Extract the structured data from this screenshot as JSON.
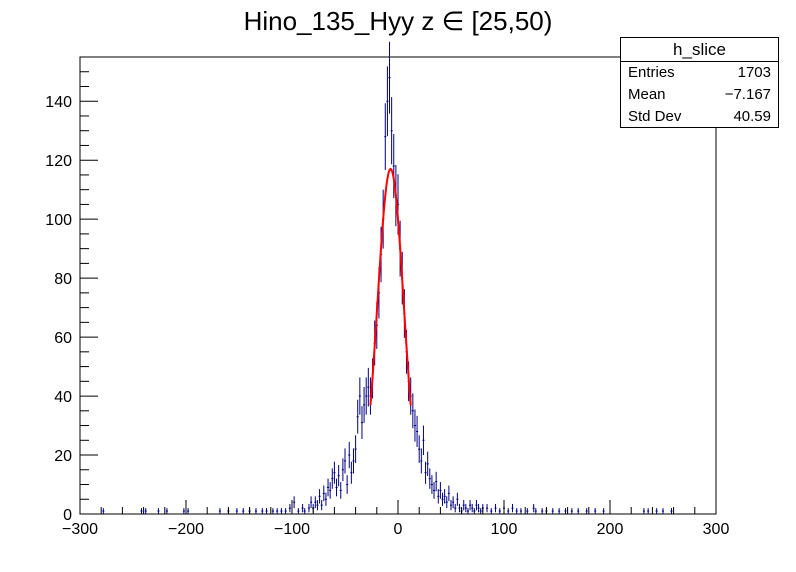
{
  "chart_data": {
    "type": "histogram",
    "title": "Hino_135_Hyy z  ∈ [25,50)",
    "xlabel": "",
    "ylabel": "",
    "xlim": [
      -300,
      300
    ],
    "ylim": [
      0,
      155
    ],
    "x_ticks": [
      -300,
      -200,
      -100,
      0,
      100,
      200,
      300
    ],
    "x_tick_labels": [
      "−300",
      "−200",
      "−100",
      "0",
      "100",
      "200",
      "300"
    ],
    "y_ticks": [
      0,
      20,
      40,
      60,
      80,
      100,
      120,
      140
    ],
    "y_tick_labels": [
      "0",
      "20",
      "40",
      "60",
      "80",
      "100",
      "120",
      "140"
    ],
    "bin_width": 2,
    "colors": {
      "histogram": "#000080",
      "fit": "#ff0000",
      "axis": "#000000"
    },
    "histogram": {
      "bins": [
        [
          -278,
          1
        ],
        [
          -242,
          1
        ],
        [
          -238,
          1
        ],
        [
          -226,
          1
        ],
        [
          -218,
          1
        ],
        [
          -202,
          1
        ],
        [
          -198,
          1
        ],
        [
          -168,
          1
        ],
        [
          -160,
          1
        ],
        [
          -152,
          1
        ],
        [
          -146,
          1
        ],
        [
          -140,
          1
        ],
        [
          -134,
          1
        ],
        [
          -128,
          1
        ],
        [
          -124,
          1
        ],
        [
          -118,
          1
        ],
        [
          -114,
          1
        ],
        [
          -110,
          1
        ],
        [
          -106,
          1
        ],
        [
          -102,
          2
        ],
        [
          -98,
          4
        ],
        [
          -94,
          1
        ],
        [
          -90,
          2
        ],
        [
          -88,
          1
        ],
        [
          -84,
          2
        ],
        [
          -82,
          4
        ],
        [
          -80,
          2
        ],
        [
          -78,
          4
        ],
        [
          -76,
          3
        ],
        [
          -74,
          6
        ],
        [
          -72,
          3
        ],
        [
          -70,
          7
        ],
        [
          -68,
          5
        ],
        [
          -66,
          9
        ],
        [
          -64,
          8
        ],
        [
          -62,
          12
        ],
        [
          -60,
          14
        ],
        [
          -58,
          9
        ],
        [
          -56,
          13
        ],
        [
          -54,
          8
        ],
        [
          -52,
          15
        ],
        [
          -50,
          18
        ],
        [
          -48,
          10
        ],
        [
          -46,
          20
        ],
        [
          -44,
          14
        ],
        [
          -42,
          18
        ],
        [
          -40,
          22
        ],
        [
          -38,
          33
        ],
        [
          -36,
          40
        ],
        [
          -34,
          31
        ],
        [
          -32,
          37
        ],
        [
          -30,
          40
        ],
        [
          -28,
          43
        ],
        [
          -26,
          40
        ],
        [
          -24,
          46
        ],
        [
          -22,
          58
        ],
        [
          -20,
          64
        ],
        [
          -18,
          75
        ],
        [
          -16,
          88
        ],
        [
          -14,
          100
        ],
        [
          -12,
          128
        ],
        [
          -10,
          140
        ],
        [
          -8,
          148
        ],
        [
          -6,
          130
        ],
        [
          -4,
          118
        ],
        [
          -2,
          108
        ],
        [
          0,
          105
        ],
        [
          2,
          90
        ],
        [
          4,
          80
        ],
        [
          6,
          68
        ],
        [
          8,
          55
        ],
        [
          10,
          45
        ],
        [
          12,
          40
        ],
        [
          14,
          35
        ],
        [
          16,
          30
        ],
        [
          18,
          28
        ],
        [
          20,
          22
        ],
        [
          22,
          18
        ],
        [
          24,
          25
        ],
        [
          26,
          14
        ],
        [
          28,
          17
        ],
        [
          30,
          12
        ],
        [
          32,
          10
        ],
        [
          34,
          8
        ],
        [
          36,
          11
        ],
        [
          38,
          6
        ],
        [
          40,
          8
        ],
        [
          42,
          5
        ],
        [
          44,
          6
        ],
        [
          46,
          4
        ],
        [
          48,
          7
        ],
        [
          50,
          3
        ],
        [
          52,
          4
        ],
        [
          54,
          2
        ],
        [
          56,
          5
        ],
        [
          58,
          2
        ],
        [
          60,
          1
        ],
        [
          62,
          3
        ],
        [
          64,
          2
        ],
        [
          66,
          1
        ],
        [
          68,
          3
        ],
        [
          70,
          2
        ],
        [
          72,
          1
        ],
        [
          74,
          3
        ],
        [
          76,
          2
        ],
        [
          78,
          1
        ],
        [
          80,
          2
        ],
        [
          84,
          2
        ],
        [
          88,
          1
        ],
        [
          92,
          2
        ],
        [
          96,
          1
        ],
        [
          100,
          2
        ],
        [
          104,
          1
        ],
        [
          108,
          2
        ],
        [
          112,
          1
        ],
        [
          116,
          1
        ],
        [
          122,
          1
        ],
        [
          128,
          2
        ],
        [
          130,
          1
        ],
        [
          136,
          1
        ],
        [
          140,
          1
        ],
        [
          146,
          1
        ],
        [
          152,
          1
        ],
        [
          158,
          1
        ],
        [
          164,
          1
        ],
        [
          170,
          1
        ],
        [
          178,
          1
        ],
        [
          186,
          1
        ],
        [
          194,
          1
        ],
        [
          232,
          1
        ],
        [
          236,
          1
        ],
        [
          244,
          1
        ],
        [
          250,
          1
        ],
        [
          258,
          1
        ]
      ]
    },
    "fit": {
      "function": "gaussian",
      "constant": 117,
      "mean": -7,
      "sigma": 12.5,
      "range": [
        -26,
        12
      ]
    },
    "stats_box": {
      "name": "h_slice",
      "rows": [
        {
          "label": "Entries",
          "value": "1703"
        },
        {
          "label": "Mean",
          "value": "−7.167"
        },
        {
          "label": "Std Dev",
          "value": "40.59"
        }
      ]
    }
  }
}
